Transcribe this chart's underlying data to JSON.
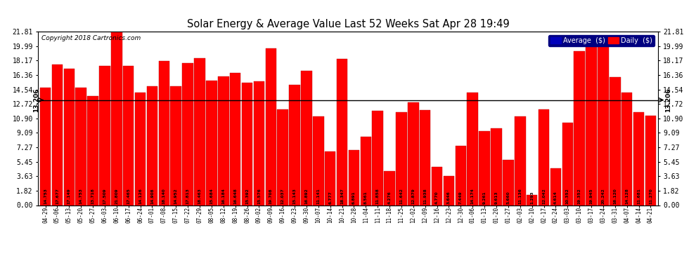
{
  "title": "Solar Energy & Average Value Last 52 Weeks Sat Apr 28 19:49",
  "copyright": "Copyright 2018 Cartronics.com",
  "average_line": 13.206,
  "average_label": "13.206",
  "ylim": [
    0,
    21.81
  ],
  "yticks": [
    0.0,
    1.82,
    3.63,
    5.45,
    7.27,
    9.09,
    10.9,
    12.72,
    14.54,
    16.36,
    18.17,
    19.99,
    21.81
  ],
  "bar_color": "#ff0000",
  "bar_edge_color": "#bb0000",
  "background_color": "#ffffff",
  "plot_bg_color": "#ffffff",
  "grid_color": "#aaaaaa",
  "average_line_color": "#0000ff",
  "legend_avg_color": "#0000bb",
  "legend_daily_color": "#ff0000",
  "categories": [
    "04-29",
    "05-06",
    "05-13",
    "05-20",
    "05-27",
    "06-03",
    "06-10",
    "06-17",
    "06-24",
    "07-01",
    "07-08",
    "07-15",
    "07-22",
    "07-29",
    "08-05",
    "08-12",
    "08-19",
    "08-26",
    "09-02",
    "09-09",
    "09-16",
    "09-23",
    "09-30",
    "10-07",
    "10-14",
    "10-21",
    "10-28",
    "11-04",
    "11-11",
    "11-18",
    "11-25",
    "12-02",
    "12-09",
    "12-16",
    "12-23",
    "12-30",
    "01-06",
    "01-13",
    "01-20",
    "01-27",
    "02-03",
    "02-10",
    "02-17",
    "02-24",
    "03-03",
    "03-10",
    "03-17",
    "03-24",
    "03-31",
    "04-07",
    "04-14",
    "04-21"
  ],
  "values": [
    14.753,
    17.677,
    17.149,
    14.753,
    13.718,
    17.509,
    21.809,
    17.465,
    14.126,
    14.908,
    18.14,
    14.952,
    17.813,
    18.463,
    15.684,
    16.184,
    16.648,
    15.392,
    15.576,
    19.708,
    12.037,
    15.143,
    16.892,
    11.141,
    6.777,
    18.347,
    6.891,
    8.561,
    11.858,
    4.276,
    11.642,
    12.879,
    11.938,
    4.77,
    3.646,
    7.449,
    14.174,
    9.261,
    9.613,
    5.66,
    11.136,
    1.293,
    12.042,
    4.614,
    10.352,
    19.352,
    19.945,
    20.242,
    16.12,
    14.128,
    11.681,
    11.27
  ]
}
